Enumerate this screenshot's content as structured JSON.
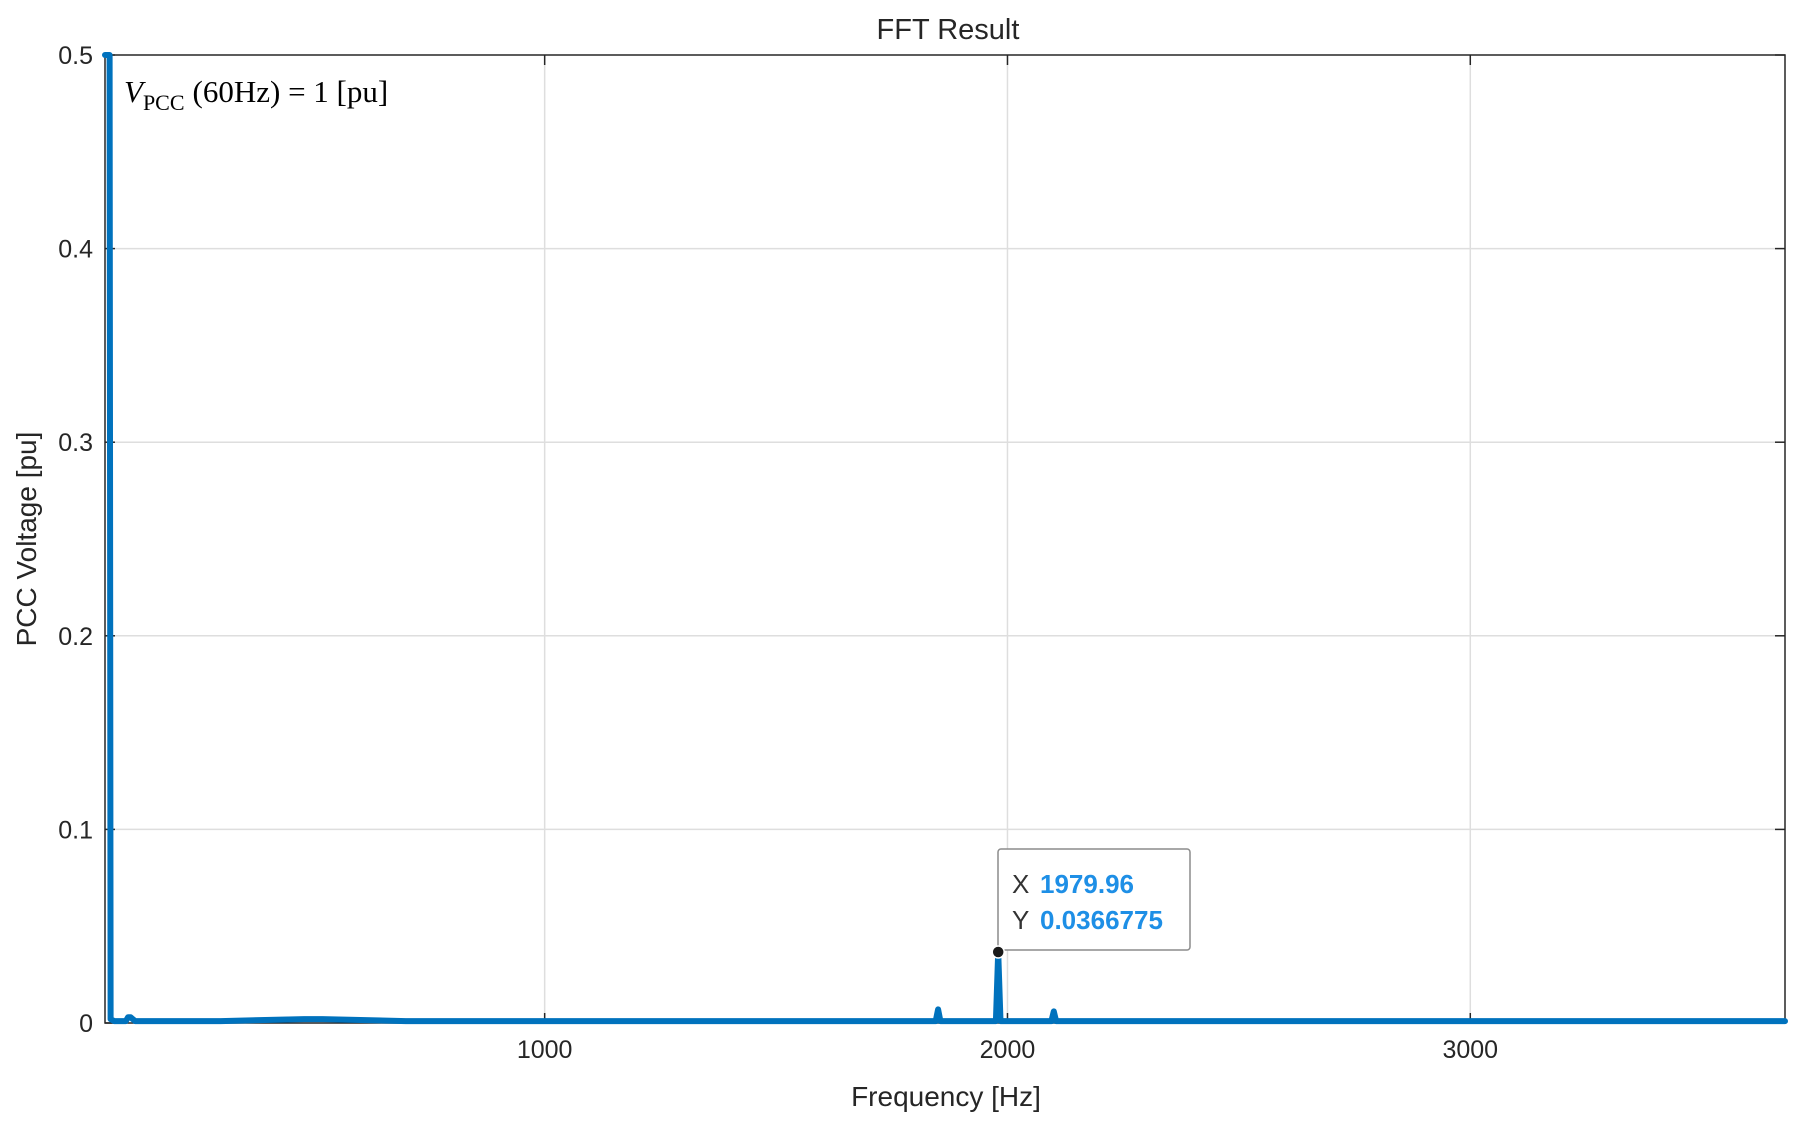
{
  "chart_data": {
    "type": "line",
    "title": "FFT Result",
    "xlabel": "Frequency [Hz]",
    "ylabel": "PCC Voltage [pu]",
    "xlim": [
      50,
      3680
    ],
    "ylim": [
      0,
      0.5
    ],
    "xticks": [
      1000,
      2000,
      3000
    ],
    "xtick_labels": [
      "1000",
      "2000",
      "3000"
    ],
    "yticks": [
      0,
      0.1,
      0.2,
      0.3,
      0.4,
      0.5
    ],
    "ytick_labels": [
      "0",
      "0.1",
      "0.2",
      "0.3",
      "0.4",
      "0.5"
    ],
    "grid": true,
    "series_color": "#0072bd",
    "series": [
      {
        "x": [
          50,
          60,
          62,
          70,
          95,
          100,
          105,
          115,
          150,
          300,
          480,
          520,
          700,
          1000,
          1500,
          1830,
          1845,
          1850,
          1855,
          1870,
          1960,
          1975,
          1980,
          1985,
          2000,
          2080,
          2095,
          2100,
          2105,
          2120,
          2500,
          3000,
          3680
        ],
        "y": [
          0.5,
          0.5,
          0.002,
          0.001,
          0.001,
          0.003,
          0.003,
          0.001,
          0.001,
          0.001,
          0.002,
          0.002,
          0.001,
          0.001,
          0.001,
          0.001,
          0.001,
          0.007,
          0.001,
          0.001,
          0.001,
          0.001,
          0.0367,
          0.001,
          0.001,
          0.001,
          0.001,
          0.006,
          0.001,
          0.001,
          0.001,
          0.001,
          0.001
        ]
      }
    ],
    "annotation": {
      "text_parts": [
        "V",
        "PCC",
        "(60Hz) = 1 [pu]"
      ],
      "position": "top-left"
    },
    "datatip": {
      "x_label": "X",
      "x_value": "1979.96",
      "y_label": "Y",
      "y_value": "0.0366775",
      "point": [
        1979.96,
        0.0366775
      ]
    }
  }
}
